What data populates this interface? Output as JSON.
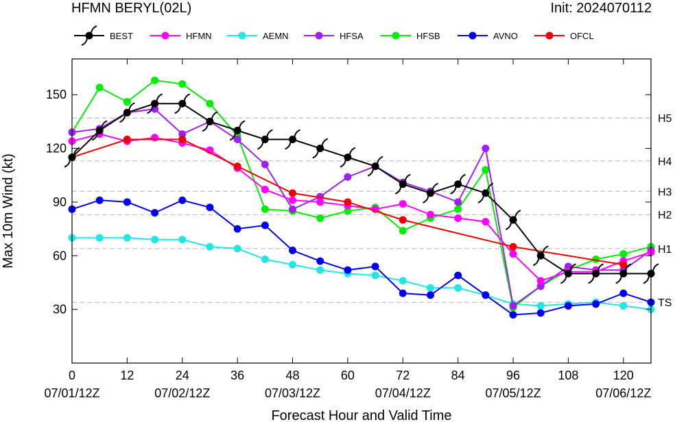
{
  "chart_data": {
    "type": "line",
    "title": "HFMN BERYL(02L)",
    "init_label": "Init: 2024070112",
    "xlabel": "Forecast Hour and Valid Time",
    "ylabel": "Max 10m Wind (kt)",
    "xlim": [
      0,
      126
    ],
    "ylim": [
      0,
      170
    ],
    "x_ticks": [
      0,
      12,
      24,
      36,
      48,
      60,
      72,
      84,
      96,
      108,
      120
    ],
    "y_ticks": [
      30,
      60,
      90,
      120,
      150
    ],
    "date_labels": [
      {
        "hour": 0,
        "label": "07/01/12Z"
      },
      {
        "hour": 24,
        "label": "07/02/12Z"
      },
      {
        "hour": 48,
        "label": "07/03/12Z"
      },
      {
        "hour": 72,
        "label": "07/04/12Z"
      },
      {
        "hour": 96,
        "label": "07/05/12Z"
      },
      {
        "hour": 120,
        "label": "07/06/12Z"
      }
    ],
    "thresholds": [
      {
        "label": "TS",
        "value": 34
      },
      {
        "label": "H1",
        "value": 64
      },
      {
        "label": "H2",
        "value": 83
      },
      {
        "label": "H3",
        "value": 96
      },
      {
        "label": "H4",
        "value": 113
      },
      {
        "label": "H5",
        "value": 137
      }
    ],
    "legend_position": "top",
    "series": [
      {
        "name": "BEST",
        "color": "#000000",
        "marker": "hurricane",
        "x": [
          0,
          6,
          12,
          18,
          24,
          30,
          36,
          42,
          48,
          54,
          60,
          66,
          72,
          78,
          84,
          90,
          96,
          102,
          108,
          114,
          120,
          126
        ],
        "y": [
          115,
          130,
          140,
          145,
          145,
          135,
          130,
          125,
          125,
          120,
          115,
          110,
          100,
          95,
          100,
          95,
          80,
          60,
          50,
          50,
          50,
          50
        ]
      },
      {
        "name": "HFMN",
        "color": "#ff00ff",
        "marker": "circle",
        "x": [
          0,
          6,
          12,
          18,
          24,
          30,
          36,
          42,
          48,
          54,
          60,
          66,
          72,
          78,
          84,
          90,
          96,
          102,
          108,
          114,
          120,
          126
        ],
        "y": [
          124,
          128,
          124,
          126,
          123,
          119,
          109,
          97,
          91,
          90,
          88,
          86,
          89,
          83,
          81,
          79,
          61,
          46,
          51,
          51,
          57,
          62
        ]
      },
      {
        "name": "AEMN",
        "color": "#22e5e5",
        "marker": "circle",
        "x": [
          0,
          6,
          12,
          18,
          24,
          30,
          36,
          42,
          48,
          54,
          60,
          66,
          72,
          78,
          84,
          90,
          96,
          102,
          108,
          114,
          120,
          126
        ],
        "y": [
          70,
          70,
          70,
          69,
          69,
          65,
          64,
          58,
          55,
          52,
          50,
          49,
          46,
          42,
          42,
          38,
          33,
          32,
          33,
          34,
          32,
          30
        ]
      },
      {
        "name": "HFSA",
        "color": "#a020f0",
        "marker": "circle",
        "x": [
          0,
          6,
          12,
          18,
          24,
          30,
          36,
          42,
          48,
          54,
          60,
          66,
          72,
          78,
          84,
          90,
          96,
          102,
          108,
          114,
          120,
          126
        ],
        "y": [
          129,
          131,
          140,
          142,
          128,
          135,
          125,
          111,
          86,
          93,
          104,
          110,
          101,
          96,
          90,
          120,
          32,
          43,
          54,
          52,
          52,
          63
        ]
      },
      {
        "name": "HFSB",
        "color": "#00ee00",
        "marker": "circle",
        "x": [
          0,
          6,
          12,
          18,
          24,
          30,
          36,
          42,
          48,
          54,
          60,
          66,
          72,
          78,
          84,
          90,
          96,
          102,
          108,
          114,
          120,
          126
        ],
        "y": [
          129,
          154,
          146,
          158,
          156,
          145,
          127,
          86,
          85,
          81,
          85,
          87,
          74,
          81,
          86,
          108,
          31,
          43,
          52,
          58,
          61,
          65
        ]
      },
      {
        "name": "AVNO",
        "color": "#0000ee",
        "marker": "circle",
        "x": [
          0,
          6,
          12,
          18,
          24,
          30,
          36,
          42,
          48,
          54,
          60,
          66,
          72,
          78,
          84,
          90,
          96,
          102,
          108,
          114,
          120,
          126
        ],
        "y": [
          86,
          91,
          90,
          84,
          91,
          87,
          75,
          77,
          63,
          57,
          52,
          54,
          39,
          38,
          49,
          38,
          27,
          28,
          32,
          33,
          39,
          34
        ]
      },
      {
        "name": "OFCL",
        "color": "#ee0000",
        "marker": "circle",
        "x": [
          0,
          12,
          24,
          36,
          48,
          60,
          72,
          96,
          120
        ],
        "y": [
          115,
          125,
          125,
          110,
          95,
          90,
          80,
          65,
          55
        ]
      }
    ]
  }
}
